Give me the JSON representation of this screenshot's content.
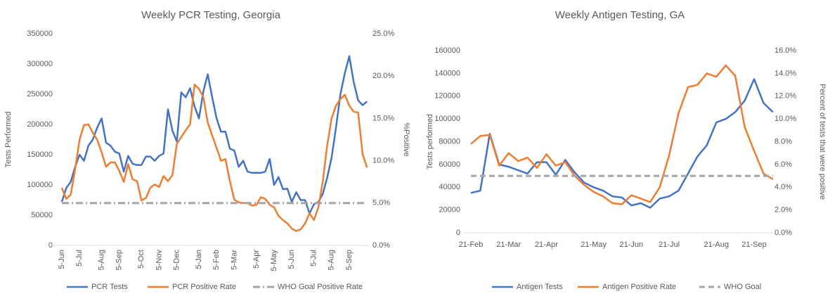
{
  "chart_data": [
    {
      "type": "line",
      "title": "Weekly PCR Testing, Georgia",
      "ylabel": "Tests Performed",
      "y2label": "%Positive",
      "categories": [
        "5-Jun",
        null,
        null,
        null,
        "5-Jul",
        null,
        null,
        null,
        null,
        "5-Aug",
        null,
        null,
        null,
        "5-Sep",
        null,
        null,
        null,
        null,
        "5-Oct",
        null,
        null,
        null,
        "5-Nov",
        null,
        null,
        null,
        "5-Dec",
        null,
        null,
        null,
        null,
        "5-Jan",
        null,
        null,
        null,
        "5-Feb",
        null,
        null,
        null,
        "5-Mar",
        null,
        null,
        null,
        null,
        "5-Apr",
        null,
        null,
        null,
        "5-May",
        null,
        null,
        null,
        "5-Jun",
        null,
        null,
        null,
        null,
        "5-Jul",
        null,
        null,
        null,
        "5-Aug",
        null,
        null,
        null,
        "5-Sep",
        null,
        null,
        null,
        null
      ],
      "ylim": [
        0,
        350000
      ],
      "yticks": [
        0,
        50000,
        100000,
        150000,
        200000,
        250000,
        300000,
        350000
      ],
      "y2lim": [
        0,
        25
      ],
      "y2ticks": [
        {
          "value": 0,
          "label": "0.0%"
        },
        {
          "value": 5,
          "label": "5.0%"
        },
        {
          "value": 10,
          "label": "10.0%"
        },
        {
          "value": 15,
          "label": "15.0%"
        },
        {
          "value": 20,
          "label": "20.0%"
        },
        {
          "value": 25,
          "label": "25.0%"
        }
      ],
      "grid": false,
      "legend": "bottom",
      "series": [
        {
          "name": "PCR Tests",
          "color": "#4472c4",
          "axis": "y",
          "line_style": "solid",
          "values": [
            72000,
            95000,
            105000,
            130000,
            150000,
            140000,
            165000,
            175000,
            195000,
            210000,
            170000,
            165000,
            155000,
            152000,
            122000,
            148000,
            135000,
            133000,
            133000,
            147000,
            147000,
            140000,
            148000,
            152000,
            225000,
            190000,
            172000,
            253000,
            245000,
            260000,
            230000,
            210000,
            255000,
            283000,
            245000,
            210000,
            188000,
            188000,
            160000,
            157000,
            130000,
            140000,
            122000,
            120000,
            120000,
            120000,
            122000,
            143000,
            100000,
            113000,
            93000,
            94000,
            72000,
            88000,
            75000,
            75000,
            53000,
            68000,
            72000,
            85000,
            112000,
            145000,
            195000,
            250000,
            285000,
            313000,
            270000,
            240000,
            232000,
            238000
          ]
        },
        {
          "name": "PCR Positive Rate",
          "color": "#ed7d31",
          "axis": "y2",
          "line_style": "solid",
          "values": [
            6.8,
            5.5,
            6.0,
            9.0,
            12.5,
            14.2,
            14.3,
            13.3,
            12.5,
            11.0,
            9.3,
            9.8,
            9.8,
            8.8,
            7.5,
            9.6,
            7.8,
            7.6,
            5.3,
            5.6,
            6.8,
            7.2,
            6.9,
            8.2,
            7.6,
            8.3,
            12.0,
            12.8,
            13.6,
            14.3,
            19.0,
            18.5,
            17.5,
            14.5,
            13.0,
            11.5,
            10.0,
            10.2,
            7.6,
            5.4,
            5.1,
            5.0,
            5.0,
            4.7,
            4.8,
            5.7,
            5.5,
            4.8,
            4.5,
            3.5,
            3.0,
            2.6,
            2.0,
            1.7,
            1.9,
            2.6,
            3.8,
            3.0,
            4.5,
            7.5,
            11.8,
            15.0,
            16.5,
            17.3,
            17.8,
            16.5,
            15.8,
            15.7,
            10.8,
            9.2
          ]
        },
        {
          "name": "WHO Goal Positive Rate",
          "color": "#a5a5a5",
          "axis": "y2",
          "line_style": "dash-dot",
          "values": [
            5,
            5,
            5,
            5,
            5,
            5,
            5,
            5,
            5,
            5,
            5,
            5,
            5,
            5,
            5,
            5,
            5,
            5,
            5,
            5,
            5,
            5,
            5,
            5,
            5,
            5,
            5,
            5,
            5,
            5,
            5,
            5,
            5,
            5,
            5,
            5,
            5,
            5,
            5,
            5,
            5,
            5,
            5,
            5,
            5,
            5,
            5,
            5,
            5,
            5,
            5,
            5,
            5,
            5,
            5,
            5,
            5,
            5,
            5,
            5,
            5,
            5,
            5,
            5,
            5,
            5,
            5,
            5,
            5,
            5
          ]
        }
      ]
    },
    {
      "type": "line",
      "title": "Weekly Antigen Testing, GA",
      "ylabel": "Tests performed",
      "y2label": "Percent of tests that were positive",
      "categories": [
        "21-Feb",
        null,
        null,
        null,
        "21-Mar",
        null,
        null,
        null,
        "21-Apr",
        null,
        null,
        null,
        null,
        "21-May",
        null,
        null,
        null,
        "21-Jun",
        null,
        null,
        null,
        "21-Jul",
        null,
        null,
        null,
        null,
        "21-Aug",
        null,
        null,
        null,
        "21-Sep",
        null,
        null
      ],
      "ylim": [
        0,
        160000
      ],
      "yticks": [
        0,
        20000,
        40000,
        60000,
        80000,
        100000,
        120000,
        140000,
        160000
      ],
      "y2lim": [
        0,
        16
      ],
      "y2ticks": [
        {
          "value": 0,
          "label": "0.0%"
        },
        {
          "value": 2,
          "label": "2.0%"
        },
        {
          "value": 4,
          "label": "4.0%"
        },
        {
          "value": 6,
          "label": "6.0%"
        },
        {
          "value": 8,
          "label": "8.0%"
        },
        {
          "value": 10,
          "label": "10.0%"
        },
        {
          "value": 12,
          "label": "12.0%"
        },
        {
          "value": 14,
          "label": "14.0%"
        },
        {
          "value": 16,
          "label": "16.0%"
        }
      ],
      "grid": false,
      "legend": "bottom",
      "series": [
        {
          "name": "Antigen Tests",
          "color": "#4472c4",
          "axis": "y",
          "line_style": "solid",
          "values": [
            35000,
            37000,
            87000,
            60000,
            58000,
            55000,
            52000,
            62000,
            62000,
            51000,
            64000,
            53000,
            44000,
            40000,
            37000,
            32000,
            31000,
            24000,
            26000,
            22000,
            30000,
            32000,
            37000,
            52000,
            67000,
            77000,
            97000,
            100000,
            106000,
            116000,
            135000,
            114000,
            106000
          ]
        },
        {
          "name": "Antigen Positive Rate",
          "color": "#ed7d31",
          "axis": "y2",
          "line_style": "solid",
          "values": [
            7.8,
            8.5,
            8.6,
            5.9,
            7.0,
            6.3,
            6.6,
            5.7,
            6.9,
            5.9,
            6.2,
            5.0,
            4.2,
            3.6,
            3.2,
            2.6,
            2.5,
            3.3,
            3.0,
            2.7,
            4.0,
            6.8,
            10.5,
            12.8,
            13.0,
            14.0,
            13.7,
            14.7,
            13.8,
            9.3,
            7.2,
            5.2,
            4.7
          ]
        },
        {
          "name": "WHO Goal",
          "color": "#a5a5a5",
          "axis": "y2",
          "line_style": "dash",
          "values": [
            5,
            5,
            5,
            5,
            5,
            5,
            5,
            5,
            5,
            5,
            5,
            5,
            5,
            5,
            5,
            5,
            5,
            5,
            5,
            5,
            5,
            5,
            5,
            5,
            5,
            5,
            5,
            5,
            5,
            5,
            5,
            5,
            5
          ]
        }
      ]
    }
  ]
}
